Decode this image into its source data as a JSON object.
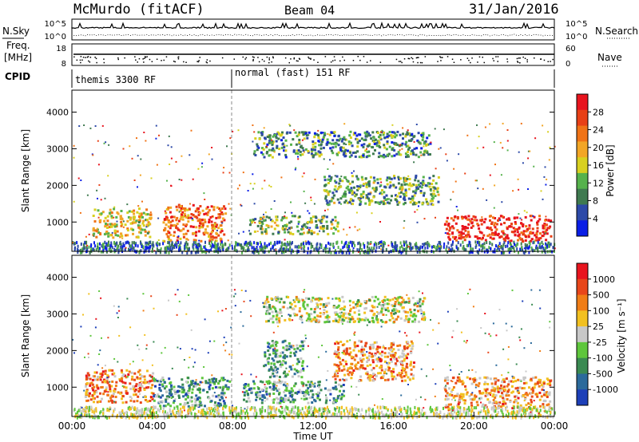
{
  "header": {
    "station": "McMurdo (fitACF)",
    "beam": "Beam 04",
    "date": "31/Jan/2016"
  },
  "side_labels": {
    "nsky": "N.Sky",
    "freq": "Freq.",
    "mhz": "[MHz]",
    "cpid": "CPID",
    "nsearch": "N.Search",
    "nave": "Nave"
  },
  "top_ticks": {
    "nsky_left": [
      "10^5",
      "10^0"
    ],
    "nsearch_right": [
      "10^5",
      "10^0"
    ],
    "freq_left": [
      "18",
      "8"
    ],
    "nave_right": [
      "60",
      "0"
    ]
  },
  "cpid": {
    "mode_a": "themis 3300 RF",
    "mode_b": "normal (fast) 151 RF"
  },
  "chart_data": [
    {
      "type": "heatmap",
      "name": "power",
      "ylabel": "Slant Range [km]",
      "xlabel": "",
      "yticks": [
        "1000",
        "2000",
        "3000",
        "4000"
      ],
      "ylim": [
        200,
        4600
      ],
      "xlim": [
        0,
        24
      ],
      "colorbar": {
        "label": "Power [dB]",
        "ticks": [
          "4",
          "8",
          "12",
          "16",
          "20",
          "24",
          "28"
        ],
        "colors": [
          "#0a1ee6",
          "#2d4aa8",
          "#3f7a50",
          "#56b24c",
          "#d8d020",
          "#f2a626",
          "#f07316",
          "#e84016",
          "#e8141e"
        ]
      },
      "patches": [
        {
          "t0": 1.0,
          "t1": 3.9,
          "r0": 600,
          "r1": 1400,
          "level": 0.55
        },
        {
          "t0": 4.5,
          "t1": 7.6,
          "r0": 500,
          "r1": 1500,
          "level": 0.75
        },
        {
          "t0": 8.8,
          "t1": 13.2,
          "r0": 700,
          "r1": 1200,
          "level": 0.4
        },
        {
          "t0": 9.0,
          "t1": 17.8,
          "r0": 2800,
          "r1": 3500,
          "level": 0.3
        },
        {
          "t0": 18.5,
          "t1": 23.8,
          "r0": 500,
          "r1": 1200,
          "level": 0.9
        },
        {
          "t0": 12.5,
          "t1": 18.2,
          "r0": 1500,
          "r1": 2300,
          "level": 0.35
        }
      ]
    },
    {
      "type": "heatmap",
      "name": "velocity",
      "ylabel": "Slant Range [km]",
      "xlabel": "Time UT",
      "xticks": [
        "00:00",
        "04:00",
        "08:00",
        "12:00",
        "16:00",
        "20:00",
        "00:00"
      ],
      "yticks": [
        "1000",
        "2000",
        "3000",
        "4000"
      ],
      "ylim": [
        200,
        4600
      ],
      "xlim": [
        0,
        24
      ],
      "colorbar": {
        "label": "Velocity [m s⁻¹]",
        "ticks": [
          "1000",
          "500",
          "100",
          "25",
          "-25",
          "-100",
          "-500",
          "-1000"
        ],
        "colors": [
          "#1d3fb8",
          "#2b6a9b",
          "#3a8a52",
          "#5ec63c",
          "#c8c8c8",
          "#f2c020",
          "#f07d16",
          "#e8461a",
          "#e8141e"
        ]
      },
      "patches": [
        {
          "t0": 0.6,
          "t1": 4.0,
          "r0": 600,
          "r1": 1500,
          "level": 0.72
        },
        {
          "t0": 4.0,
          "t1": 7.8,
          "r0": 500,
          "r1": 1300,
          "level": 0.28
        },
        {
          "t0": 8.5,
          "t1": 13.5,
          "r0": 600,
          "r1": 1200,
          "level": 0.3
        },
        {
          "t0": 9.5,
          "t1": 11.5,
          "r0": 1300,
          "r1": 2300,
          "level": 0.32
        },
        {
          "t0": 13.0,
          "t1": 17.0,
          "r0": 1200,
          "r1": 2300,
          "level": 0.7
        },
        {
          "t0": 18.5,
          "t1": 23.8,
          "r0": 450,
          "r1": 1300,
          "level": 0.68
        },
        {
          "t0": 9.5,
          "t1": 17.5,
          "r0": 2800,
          "r1": 3500,
          "level": 0.5
        }
      ]
    }
  ]
}
